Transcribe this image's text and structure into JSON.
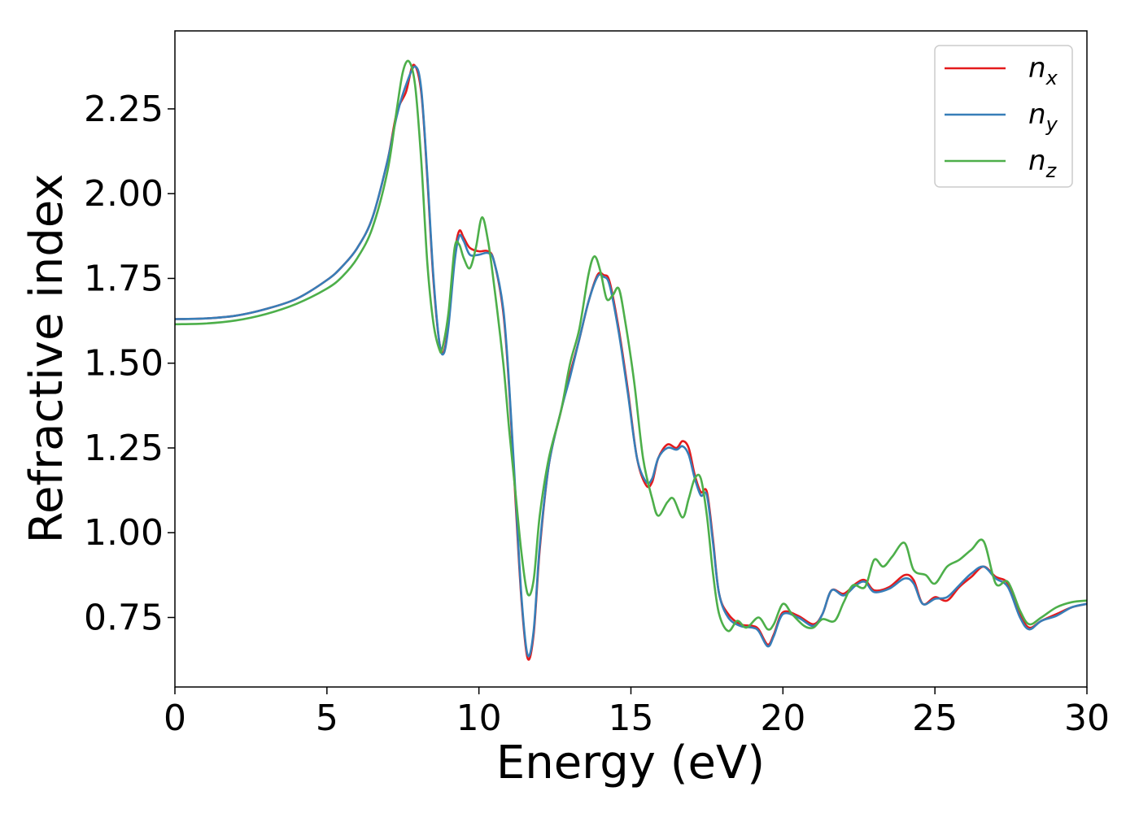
{
  "chart_data": {
    "type": "line",
    "xlabel": "Energy (eV)",
    "ylabel": "Refractive index",
    "xlim": [
      0,
      30
    ],
    "ylim": [
      0.545,
      2.48
    ],
    "x_ticks": [
      "0",
      "5",
      "10",
      "15",
      "20",
      "25",
      "30"
    ],
    "y_ticks": [
      "0.75",
      "1.00",
      "1.25",
      "1.50",
      "1.75",
      "2.00",
      "2.25"
    ],
    "grid": false,
    "legend_position": "top-right",
    "series": [
      {
        "name": "n_x",
        "legend_base": "n",
        "legend_sub": "x",
        "color": "#e41a1c",
        "points": [
          [
            0,
            1.63
          ],
          [
            1,
            1.632
          ],
          [
            2,
            1.64
          ],
          [
            3,
            1.66
          ],
          [
            4,
            1.69
          ],
          [
            5,
            1.745
          ],
          [
            5.5,
            1.785
          ],
          [
            6,
            1.84
          ],
          [
            6.5,
            1.93
          ],
          [
            7,
            2.1
          ],
          [
            7.3,
            2.24
          ],
          [
            7.6,
            2.3
          ],
          [
            7.85,
            2.38
          ],
          [
            8.1,
            2.3
          ],
          [
            8.3,
            2.05
          ],
          [
            8.5,
            1.75
          ],
          [
            8.7,
            1.56
          ],
          [
            8.85,
            1.535
          ],
          [
            9.0,
            1.62
          ],
          [
            9.2,
            1.82
          ],
          [
            9.35,
            1.89
          ],
          [
            9.5,
            1.87
          ],
          [
            9.7,
            1.84
          ],
          [
            10.0,
            1.83
          ],
          [
            10.3,
            1.83
          ],
          [
            10.5,
            1.8
          ],
          [
            10.8,
            1.65
          ],
          [
            11.0,
            1.42
          ],
          [
            11.2,
            1.1
          ],
          [
            11.4,
            0.8
          ],
          [
            11.6,
            0.63
          ],
          [
            11.8,
            0.7
          ],
          [
            12.0,
            0.95
          ],
          [
            12.3,
            1.2
          ],
          [
            12.7,
            1.36
          ],
          [
            13.0,
            1.47
          ],
          [
            13.3,
            1.57
          ],
          [
            13.6,
            1.68
          ],
          [
            13.9,
            1.76
          ],
          [
            14.1,
            1.76
          ],
          [
            14.3,
            1.74
          ],
          [
            14.6,
            1.6
          ],
          [
            14.9,
            1.42
          ],
          [
            15.2,
            1.22
          ],
          [
            15.5,
            1.14
          ],
          [
            15.7,
            1.15
          ],
          [
            15.9,
            1.22
          ],
          [
            16.2,
            1.26
          ],
          [
            16.5,
            1.25
          ],
          [
            16.7,
            1.27
          ],
          [
            16.9,
            1.25
          ],
          [
            17.1,
            1.17
          ],
          [
            17.3,
            1.12
          ],
          [
            17.5,
            1.12
          ],
          [
            17.7,
            0.98
          ],
          [
            17.9,
            0.82
          ],
          [
            18.2,
            0.76
          ],
          [
            18.6,
            0.73
          ],
          [
            19.0,
            0.725
          ],
          [
            19.2,
            0.715
          ],
          [
            19.5,
            0.67
          ],
          [
            19.7,
            0.7
          ],
          [
            20.0,
            0.765
          ],
          [
            20.5,
            0.755
          ],
          [
            21.0,
            0.73
          ],
          [
            21.3,
            0.76
          ],
          [
            21.6,
            0.83
          ],
          [
            22.0,
            0.82
          ],
          [
            22.4,
            0.85
          ],
          [
            22.7,
            0.86
          ],
          [
            23.0,
            0.83
          ],
          [
            23.5,
            0.84
          ],
          [
            24.0,
            0.875
          ],
          [
            24.3,
            0.86
          ],
          [
            24.6,
            0.79
          ],
          [
            25.0,
            0.81
          ],
          [
            25.4,
            0.8
          ],
          [
            25.8,
            0.84
          ],
          [
            26.2,
            0.87
          ],
          [
            26.6,
            0.9
          ],
          [
            27.0,
            0.87
          ],
          [
            27.4,
            0.85
          ],
          [
            27.8,
            0.76
          ],
          [
            28.1,
            0.72
          ],
          [
            28.5,
            0.74
          ],
          [
            29.0,
            0.76
          ],
          [
            29.5,
            0.78
          ],
          [
            30.0,
            0.79
          ]
        ]
      },
      {
        "name": "n_y",
        "legend_base": "n",
        "legend_sub": "y",
        "color": "#377eb8",
        "points": [
          [
            0,
            1.63
          ],
          [
            1,
            1.632
          ],
          [
            2,
            1.64
          ],
          [
            3,
            1.66
          ],
          [
            4,
            1.69
          ],
          [
            5,
            1.745
          ],
          [
            5.5,
            1.785
          ],
          [
            6,
            1.84
          ],
          [
            6.5,
            1.93
          ],
          [
            7,
            2.1
          ],
          [
            7.3,
            2.23
          ],
          [
            7.6,
            2.32
          ],
          [
            7.9,
            2.375
          ],
          [
            8.1,
            2.31
          ],
          [
            8.3,
            2.06
          ],
          [
            8.5,
            1.76
          ],
          [
            8.7,
            1.56
          ],
          [
            8.85,
            1.53
          ],
          [
            9.0,
            1.61
          ],
          [
            9.2,
            1.8
          ],
          [
            9.35,
            1.875
          ],
          [
            9.5,
            1.86
          ],
          [
            9.7,
            1.82
          ],
          [
            10.0,
            1.82
          ],
          [
            10.3,
            1.825
          ],
          [
            10.5,
            1.8
          ],
          [
            10.8,
            1.66
          ],
          [
            11.0,
            1.43
          ],
          [
            11.2,
            1.12
          ],
          [
            11.4,
            0.81
          ],
          [
            11.6,
            0.64
          ],
          [
            11.8,
            0.71
          ],
          [
            12.0,
            0.96
          ],
          [
            12.3,
            1.2
          ],
          [
            12.7,
            1.36
          ],
          [
            13.0,
            1.46
          ],
          [
            13.3,
            1.57
          ],
          [
            13.6,
            1.68
          ],
          [
            13.9,
            1.755
          ],
          [
            14.1,
            1.755
          ],
          [
            14.3,
            1.73
          ],
          [
            14.6,
            1.59
          ],
          [
            14.9,
            1.41
          ],
          [
            15.2,
            1.22
          ],
          [
            15.5,
            1.15
          ],
          [
            15.7,
            1.16
          ],
          [
            15.9,
            1.22
          ],
          [
            16.2,
            1.25
          ],
          [
            16.5,
            1.245
          ],
          [
            16.7,
            1.255
          ],
          [
            16.9,
            1.23
          ],
          [
            17.1,
            1.16
          ],
          [
            17.3,
            1.11
          ],
          [
            17.5,
            1.11
          ],
          [
            17.7,
            0.97
          ],
          [
            17.9,
            0.82
          ],
          [
            18.2,
            0.75
          ],
          [
            18.6,
            0.725
          ],
          [
            19.0,
            0.72
          ],
          [
            19.2,
            0.71
          ],
          [
            19.5,
            0.665
          ],
          [
            19.7,
            0.695
          ],
          [
            20.0,
            0.76
          ],
          [
            20.5,
            0.75
          ],
          [
            21.0,
            0.725
          ],
          [
            21.3,
            0.76
          ],
          [
            21.6,
            0.83
          ],
          [
            22.0,
            0.815
          ],
          [
            22.4,
            0.845
          ],
          [
            22.7,
            0.855
          ],
          [
            23.0,
            0.825
          ],
          [
            23.5,
            0.835
          ],
          [
            24.0,
            0.865
          ],
          [
            24.3,
            0.85
          ],
          [
            24.6,
            0.79
          ],
          [
            25.0,
            0.805
          ],
          [
            25.4,
            0.81
          ],
          [
            25.8,
            0.845
          ],
          [
            26.2,
            0.88
          ],
          [
            26.6,
            0.9
          ],
          [
            27.0,
            0.865
          ],
          [
            27.4,
            0.84
          ],
          [
            27.8,
            0.75
          ],
          [
            28.1,
            0.715
          ],
          [
            28.5,
            0.74
          ],
          [
            29.0,
            0.755
          ],
          [
            29.5,
            0.78
          ],
          [
            30.0,
            0.79
          ]
        ]
      },
      {
        "name": "n_z",
        "legend_base": "n",
        "legend_sub": "z",
        "color": "#4daf4a",
        "points": [
          [
            0,
            1.615
          ],
          [
            1,
            1.617
          ],
          [
            2,
            1.626
          ],
          [
            3,
            1.645
          ],
          [
            4,
            1.675
          ],
          [
            5,
            1.72
          ],
          [
            5.5,
            1.755
          ],
          [
            6,
            1.81
          ],
          [
            6.5,
            1.9
          ],
          [
            7,
            2.07
          ],
          [
            7.3,
            2.25
          ],
          [
            7.5,
            2.36
          ],
          [
            7.7,
            2.39
          ],
          [
            7.9,
            2.32
          ],
          [
            8.1,
            2.1
          ],
          [
            8.3,
            1.8
          ],
          [
            8.5,
            1.62
          ],
          [
            8.7,
            1.54
          ],
          [
            8.8,
            1.545
          ],
          [
            9.0,
            1.65
          ],
          [
            9.2,
            1.84
          ],
          [
            9.35,
            1.85
          ],
          [
            9.5,
            1.81
          ],
          [
            9.7,
            1.78
          ],
          [
            9.9,
            1.84
          ],
          [
            10.1,
            1.93
          ],
          [
            10.3,
            1.86
          ],
          [
            10.5,
            1.73
          ],
          [
            10.8,
            1.5
          ],
          [
            11.0,
            1.3
          ],
          [
            11.2,
            1.12
          ],
          [
            11.4,
            0.94
          ],
          [
            11.6,
            0.82
          ],
          [
            11.8,
            0.86
          ],
          [
            12.0,
            1.05
          ],
          [
            12.3,
            1.22
          ],
          [
            12.7,
            1.36
          ],
          [
            13.0,
            1.5
          ],
          [
            13.3,
            1.6
          ],
          [
            13.6,
            1.76
          ],
          [
            13.8,
            1.815
          ],
          [
            14.0,
            1.77
          ],
          [
            14.2,
            1.69
          ],
          [
            14.4,
            1.7
          ],
          [
            14.6,
            1.72
          ],
          [
            14.8,
            1.63
          ],
          [
            15.1,
            1.45
          ],
          [
            15.4,
            1.22
          ],
          [
            15.7,
            1.1
          ],
          [
            15.9,
            1.05
          ],
          [
            16.2,
            1.09
          ],
          [
            16.4,
            1.1
          ],
          [
            16.7,
            1.045
          ],
          [
            16.9,
            1.1
          ],
          [
            17.1,
            1.16
          ],
          [
            17.3,
            1.16
          ],
          [
            17.5,
            1.05
          ],
          [
            17.7,
            0.88
          ],
          [
            17.9,
            0.76
          ],
          [
            18.2,
            0.71
          ],
          [
            18.5,
            0.74
          ],
          [
            18.8,
            0.72
          ],
          [
            19.2,
            0.75
          ],
          [
            19.5,
            0.715
          ],
          [
            19.7,
            0.73
          ],
          [
            20.0,
            0.79
          ],
          [
            20.3,
            0.76
          ],
          [
            20.7,
            0.725
          ],
          [
            21.0,
            0.72
          ],
          [
            21.3,
            0.745
          ],
          [
            21.7,
            0.74
          ],
          [
            22.0,
            0.795
          ],
          [
            22.3,
            0.845
          ],
          [
            22.7,
            0.84
          ],
          [
            23.0,
            0.92
          ],
          [
            23.3,
            0.9
          ],
          [
            23.6,
            0.93
          ],
          [
            24.0,
            0.97
          ],
          [
            24.3,
            0.89
          ],
          [
            24.7,
            0.875
          ],
          [
            25.0,
            0.85
          ],
          [
            25.4,
            0.9
          ],
          [
            25.8,
            0.92
          ],
          [
            26.2,
            0.95
          ],
          [
            26.6,
            0.975
          ],
          [
            27.0,
            0.85
          ],
          [
            27.4,
            0.855
          ],
          [
            27.8,
            0.77
          ],
          [
            28.1,
            0.73
          ],
          [
            28.5,
            0.75
          ],
          [
            29.0,
            0.78
          ],
          [
            29.5,
            0.795
          ],
          [
            30.0,
            0.8
          ]
        ]
      }
    ]
  }
}
